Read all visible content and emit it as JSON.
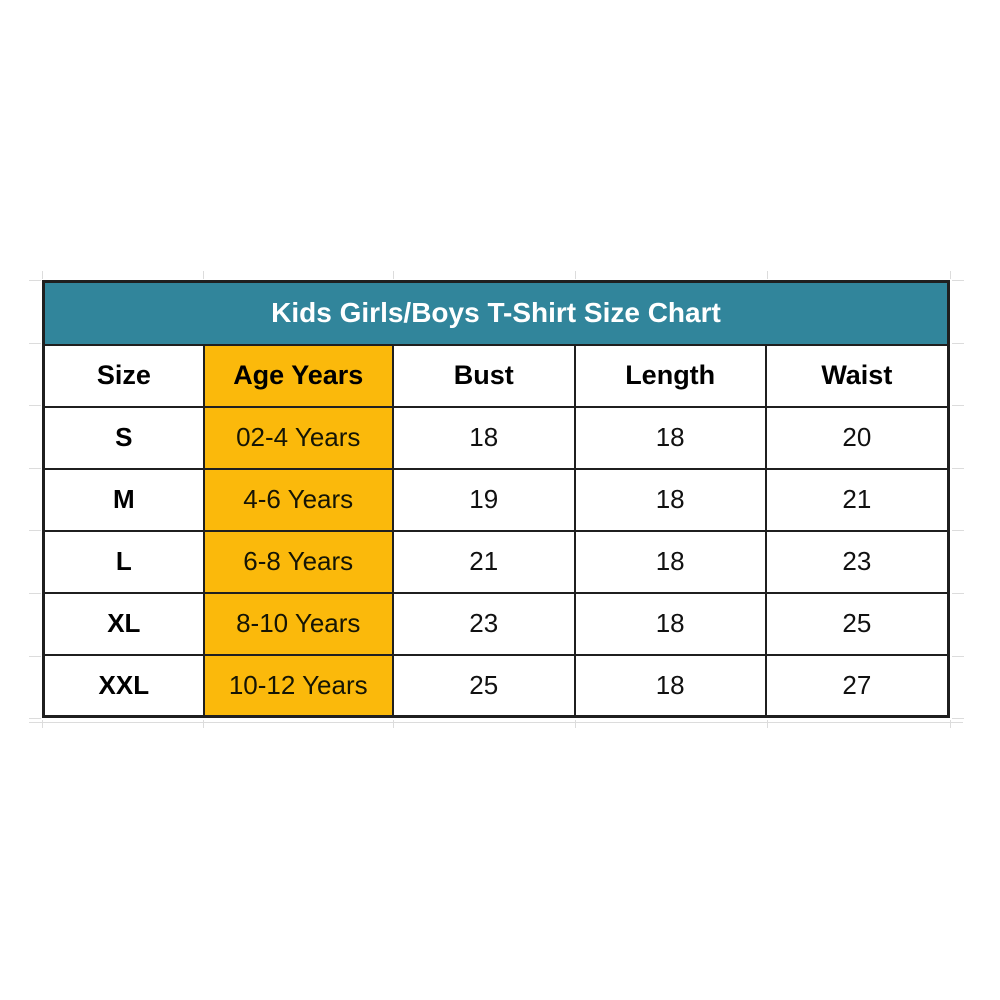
{
  "colors": {
    "header_bg": "#31859B",
    "header_text": "#FFFFFF",
    "age_column_bg": "#FBB90B",
    "border": "#1F1F1F"
  },
  "chart_data": {
    "type": "table",
    "title": "Kids Girls/Boys T-Shirt Size Chart",
    "columns": [
      "Size",
      "Age Years",
      "Bust",
      "Length",
      "Waist"
    ],
    "rows": [
      [
        "S",
        "02-4 Years",
        "18",
        "18",
        "20"
      ],
      [
        "M",
        "4-6 Years",
        "19",
        "18",
        "21"
      ],
      [
        "L",
        "6-8 Years",
        "21",
        "18",
        "23"
      ],
      [
        "XL",
        "8-10 Years",
        "23",
        "18",
        "25"
      ],
      [
        "XXL",
        "10-12 Years",
        "25",
        "18",
        "27"
      ]
    ],
    "layout_hints": {
      "highlighted_column": "Age Years",
      "title_row_bg": "teal",
      "highlight_bg": "golden-yellow",
      "grid": "black cell borders, faint spreadsheet gridlines outside table"
    }
  }
}
